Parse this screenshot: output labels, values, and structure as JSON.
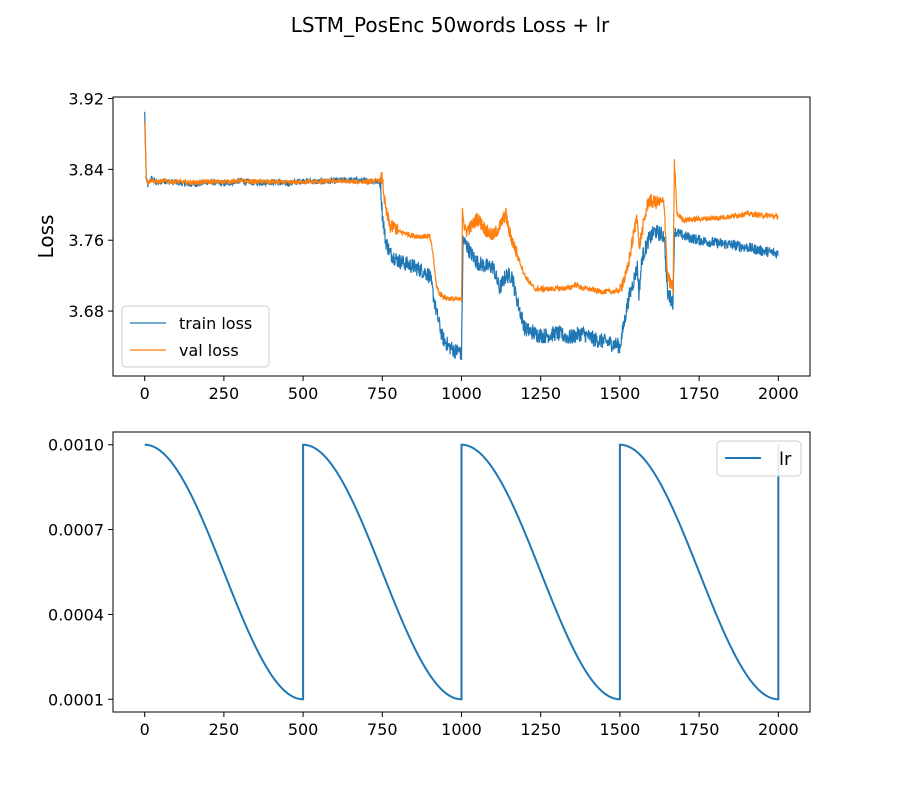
{
  "figure": {
    "suptitle": "LSTM_PosEnc 50words Loss + lr"
  },
  "chart_data": [
    {
      "type": "line",
      "ylabel": "Loss",
      "xlim": [
        -100,
        2100
      ],
      "ylim": [
        3.6067,
        3.9217
      ],
      "xticks": [
        0,
        250,
        500,
        750,
        1000,
        1250,
        1500,
        1750,
        2000
      ],
      "xtick_labels": [
        "0",
        "250",
        "500",
        "750",
        "1000",
        "1250",
        "1500",
        "1750",
        "2000"
      ],
      "yticks": [
        3.68,
        3.76,
        3.84,
        3.92
      ],
      "ytick_labels": [
        "3.68",
        "3.76",
        "3.84",
        "3.92"
      ],
      "legend_position": "lower-left",
      "grid": false,
      "series": [
        {
          "name": "train loss",
          "color": "#1f77b4",
          "points": [
            [
              0,
              3.905
            ],
            [
              5,
              3.83
            ],
            [
              10,
              3.822
            ],
            [
              20,
              3.83
            ],
            [
              40,
              3.824
            ],
            [
              60,
              3.827
            ],
            [
              100,
              3.825
            ],
            [
              150,
              3.823
            ],
            [
              200,
              3.826
            ],
            [
              250,
              3.824
            ],
            [
              300,
              3.827
            ],
            [
              350,
              3.825
            ],
            [
              400,
              3.826
            ],
            [
              450,
              3.824
            ],
            [
              500,
              3.827
            ],
            [
              550,
              3.826
            ],
            [
              600,
              3.827
            ],
            [
              650,
              3.828
            ],
            [
              700,
              3.827
            ],
            [
              740,
              3.826
            ],
            [
              745,
              3.82
            ],
            [
              750,
              3.79
            ],
            [
              760,
              3.76
            ],
            [
              775,
              3.745
            ],
            [
              800,
              3.737
            ],
            [
              850,
              3.73
            ],
            [
              880,
              3.725
            ],
            [
              900,
              3.72
            ],
            [
              920,
              3.68
            ],
            [
              940,
              3.65
            ],
            [
              960,
              3.64
            ],
            [
              980,
              3.635
            ],
            [
              995,
              3.635
            ],
            [
              1000,
              3.63
            ],
            [
              1005,
              3.76
            ],
            [
              1015,
              3.755
            ],
            [
              1030,
              3.745
            ],
            [
              1050,
              3.735
            ],
            [
              1080,
              3.73
            ],
            [
              1100,
              3.73
            ],
            [
              1120,
              3.705
            ],
            [
              1140,
              3.72
            ],
            [
              1160,
              3.72
            ],
            [
              1170,
              3.7
            ],
            [
              1200,
              3.66
            ],
            [
              1230,
              3.655
            ],
            [
              1260,
              3.652
            ],
            [
              1300,
              3.655
            ],
            [
              1340,
              3.65
            ],
            [
              1380,
              3.655
            ],
            [
              1420,
              3.648
            ],
            [
              1460,
              3.645
            ],
            [
              1490,
              3.642
            ],
            [
              1500,
              3.64
            ],
            [
              1510,
              3.66
            ],
            [
              1525,
              3.69
            ],
            [
              1540,
              3.71
            ],
            [
              1555,
              3.73
            ],
            [
              1560,
              3.7
            ],
            [
              1570,
              3.74
            ],
            [
              1590,
              3.76
            ],
            [
              1610,
              3.77
            ],
            [
              1640,
              3.765
            ],
            [
              1650,
              3.7
            ],
            [
              1660,
              3.695
            ],
            [
              1668,
              3.69
            ],
            [
              1672,
              3.77
            ],
            [
              1700,
              3.765
            ],
            [
              1750,
              3.76
            ],
            [
              1800,
              3.757
            ],
            [
              1850,
              3.755
            ],
            [
              1900,
              3.752
            ],
            [
              1950,
              3.748
            ],
            [
              2000,
              3.745
            ]
          ]
        },
        {
          "name": "val loss",
          "color": "#ff7f0e",
          "points": [
            [
              0,
              3.894
            ],
            [
              5,
              3.83
            ],
            [
              10,
              3.825
            ],
            [
              20,
              3.828
            ],
            [
              40,
              3.826
            ],
            [
              60,
              3.827
            ],
            [
              100,
              3.826
            ],
            [
              150,
              3.825
            ],
            [
              200,
              3.826
            ],
            [
              250,
              3.826
            ],
            [
              300,
              3.827
            ],
            [
              350,
              3.826
            ],
            [
              400,
              3.826
            ],
            [
              450,
              3.825
            ],
            [
              500,
              3.826
            ],
            [
              550,
              3.826
            ],
            [
              600,
              3.827
            ],
            [
              650,
              3.826
            ],
            [
              700,
              3.826
            ],
            [
              740,
              3.827
            ],
            [
              750,
              3.83
            ],
            [
              760,
              3.795
            ],
            [
              775,
              3.775
            ],
            [
              790,
              3.775
            ],
            [
              800,
              3.77
            ],
            [
              830,
              3.767
            ],
            [
              850,
              3.765
            ],
            [
              900,
              3.764
            ],
            [
              910,
              3.745
            ],
            [
              920,
              3.71
            ],
            [
              930,
              3.7
            ],
            [
              950,
              3.695
            ],
            [
              990,
              3.693
            ],
            [
              1000,
              3.693
            ],
            [
              1003,
              3.8
            ],
            [
              1010,
              3.77
            ],
            [
              1030,
              3.775
            ],
            [
              1050,
              3.785
            ],
            [
              1080,
              3.77
            ],
            [
              1100,
              3.765
            ],
            [
              1120,
              3.775
            ],
            [
              1140,
              3.79
            ],
            [
              1150,
              3.77
            ],
            [
              1170,
              3.75
            ],
            [
              1200,
              3.72
            ],
            [
              1230,
              3.705
            ],
            [
              1280,
              3.705
            ],
            [
              1340,
              3.706
            ],
            [
              1360,
              3.71
            ],
            [
              1380,
              3.706
            ],
            [
              1400,
              3.705
            ],
            [
              1440,
              3.702
            ],
            [
              1480,
              3.702
            ],
            [
              1500,
              3.703
            ],
            [
              1510,
              3.715
            ],
            [
              1520,
              3.72
            ],
            [
              1540,
              3.76
            ],
            [
              1555,
              3.79
            ],
            [
              1560,
              3.75
            ],
            [
              1570,
              3.77
            ],
            [
              1590,
              3.805
            ],
            [
              1610,
              3.803
            ],
            [
              1640,
              3.802
            ],
            [
              1650,
              3.72
            ],
            [
              1660,
              3.71
            ],
            [
              1668,
              3.705
            ],
            [
              1672,
              3.85
            ],
            [
              1680,
              3.79
            ],
            [
              1700,
              3.783
            ],
            [
              1750,
              3.784
            ],
            [
              1800,
              3.785
            ],
            [
              1850,
              3.787
            ],
            [
              1900,
              3.79
            ],
            [
              1950,
              3.788
            ],
            [
              2000,
              3.787
            ]
          ]
        }
      ]
    },
    {
      "type": "line",
      "xlim": [
        -100,
        2100
      ],
      "ylim": [
        5.5e-05,
        0.001045
      ],
      "xticks": [
        0,
        250,
        500,
        750,
        1000,
        1250,
        1500,
        1750,
        2000
      ],
      "xtick_labels": [
        "0",
        "250",
        "500",
        "750",
        "1000",
        "1250",
        "1500",
        "1750",
        "2000"
      ],
      "yticks": [
        0.0001,
        0.0004,
        0.0007,
        0.001
      ],
      "ytick_labels": [
        "0.0001",
        "0.0004",
        "0.0007",
        "0.0010"
      ],
      "legend_position": "upper-right",
      "grid": false,
      "series": [
        {
          "name": "lr",
          "color": "#1f77b4",
          "schedule": "cosine",
          "period": 500,
          "lr_max": 0.001,
          "lr_min": 0.0001,
          "x_range": [
            0,
            2000
          ]
        }
      ]
    }
  ]
}
